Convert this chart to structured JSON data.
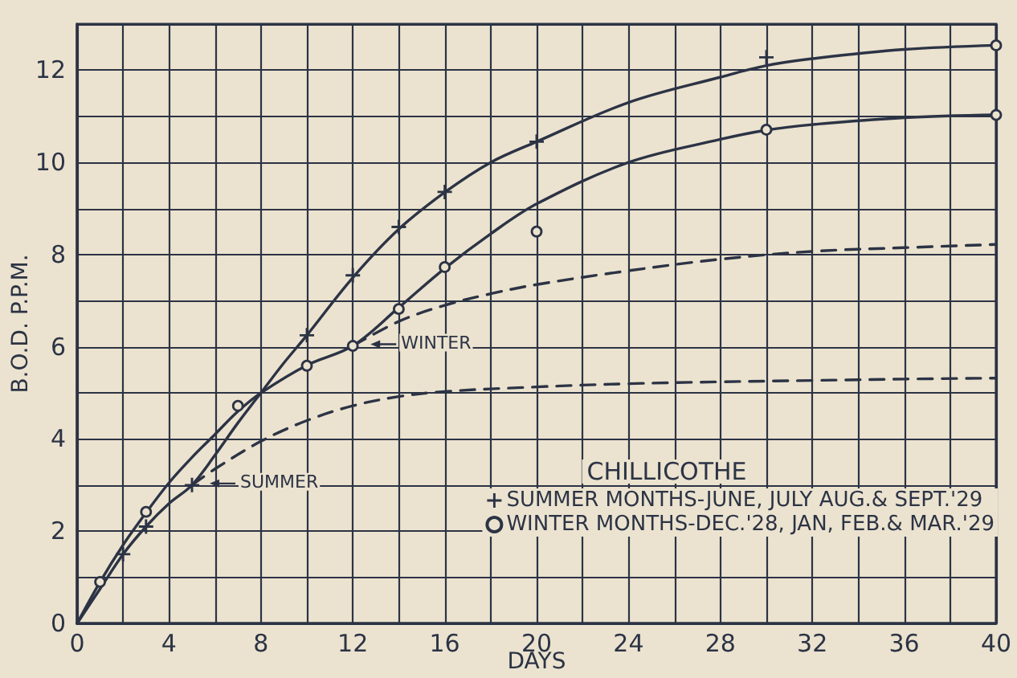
{
  "chart_data": {
    "type": "line",
    "xlabel": "DAYS",
    "ylabel": "B.O.D. P.P.M.",
    "legend_title": "CHILLICOTHE",
    "xlim": [
      0,
      40
    ],
    "xticks": [
      0,
      {
        "value": 2,
        "label": null
      },
      4,
      {
        "value": 6,
        "label": null
      },
      8,
      {
        "value": 10,
        "label": null
      },
      12,
      {
        "value": 14,
        "label": null
      },
      16,
      {
        "value": 18,
        "label": null
      },
      20,
      {
        "value": 22,
        "label": null
      },
      24,
      {
        "value": 26,
        "label": null
      },
      28,
      {
        "value": 30,
        "label": null
      },
      32,
      {
        "value": 34,
        "label": null
      },
      36,
      {
        "value": 38,
        "label": null
      },
      40
    ],
    "ylim": [
      0,
      13
    ],
    "yticks": [
      0,
      {
        "value": 1,
        "label": null
      },
      2,
      {
        "value": 3,
        "label": null
      },
      4,
      {
        "value": 5,
        "label": null
      },
      6,
      {
        "value": 7,
        "label": null
      },
      8,
      {
        "value": 9,
        "label": null
      },
      10,
      {
        "value": 11,
        "label": null
      },
      12,
      {
        "value": 13,
        "label": null
      }
    ],
    "grid": true,
    "legend": "bottom right",
    "annotations": [
      {
        "text": "WINTER",
        "x": 12,
        "y": 6.02
      },
      {
        "text": "SUMMER",
        "x": 5,
        "y": 3.0
      }
    ],
    "series": [
      {
        "name": "SUMMER MONTHS-JUNE, JULY AUG.& SEPT.'29",
        "type": "scatter",
        "marker": "cross",
        "color": "#2c3345",
        "x": [
          2,
          3,
          5,
          10,
          12,
          14,
          16,
          20,
          30
        ],
        "values": [
          1.5,
          2.1,
          3.0,
          6.25,
          7.55,
          8.6,
          9.36,
          10.45,
          12.28
        ]
      },
      {
        "name": "WINTER MONTHS-DEC.'28, JAN, FEB.& MAR.'29",
        "type": "scatter",
        "marker": "circle",
        "color": "#2c3345",
        "x": [
          1,
          3,
          7,
          10,
          14,
          16,
          20,
          30
        ],
        "values": [
          0.9,
          2.42,
          4.72,
          5.59,
          6.82,
          7.73,
          8.5,
          10.71
        ]
      },
      {
        "type": "scatter",
        "marker": "circle",
        "color": "#2c3345",
        "x": [
          12,
          40,
          40
        ],
        "values": [
          6.02,
          12.54,
          11.03
        ]
      },
      {
        "color": "#2c3345",
        "line_style": "solid",
        "x": [
          0,
          1,
          2,
          3,
          4,
          5,
          6,
          7,
          8,
          9,
          10,
          12,
          14,
          16,
          18,
          20,
          24,
          28,
          30,
          32,
          36,
          40
        ],
        "values": [
          0,
          0.75,
          1.5,
          2.1,
          2.6,
          3.0,
          3.65,
          4.35,
          5.0,
          5.65,
          6.25,
          7.5,
          8.55,
          9.35,
          10.0,
          10.45,
          11.3,
          11.85,
          12.1,
          12.25,
          12.45,
          12.54
        ]
      },
      {
        "color": "#2c3345",
        "line_style": "solid",
        "x": [
          0,
          1,
          2,
          3,
          4,
          5,
          6,
          7,
          8,
          10,
          12,
          14,
          16,
          18,
          20,
          24,
          28,
          30,
          32,
          36,
          40
        ],
        "values": [
          0,
          0.9,
          1.7,
          2.4,
          3.05,
          3.6,
          4.1,
          4.6,
          5.0,
          5.6,
          6.02,
          6.85,
          7.7,
          8.45,
          9.1,
          10.0,
          10.5,
          10.7,
          10.82,
          10.97,
          11.03
        ]
      },
      {
        "color": "#2c3345",
        "line_style": "dashed",
        "x": [
          12,
          14,
          16,
          18,
          20,
          24,
          28,
          32,
          36,
          40
        ],
        "values": [
          6.02,
          6.55,
          6.9,
          7.15,
          7.35,
          7.65,
          7.9,
          8.07,
          8.15,
          8.22
        ]
      },
      {
        "color": "#2c3345",
        "line_style": "dashed",
        "x": [
          5,
          6,
          8,
          10,
          12,
          14,
          16,
          20,
          24,
          28,
          32,
          36,
          40
        ],
        "values": [
          3.0,
          3.35,
          3.95,
          4.4,
          4.72,
          4.92,
          5.03,
          5.13,
          5.2,
          5.24,
          5.27,
          5.3,
          5.32
        ]
      }
    ]
  }
}
